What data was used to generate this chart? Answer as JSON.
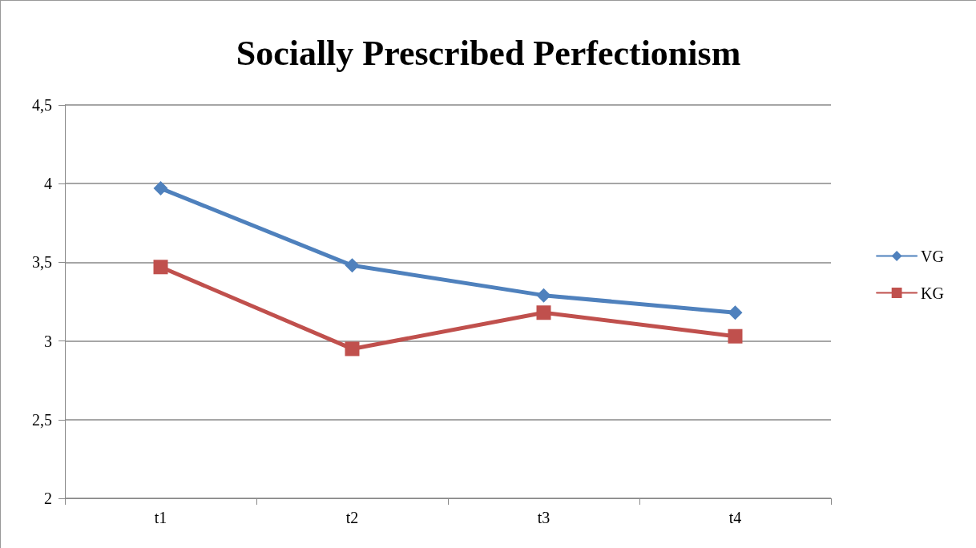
{
  "chart_data": {
    "type": "line",
    "title": "Socially Prescribed Perfectionism",
    "categories": [
      "t1",
      "t2",
      "t3",
      "t4"
    ],
    "series": [
      {
        "name": "VG",
        "color": "#4f81bd",
        "marker": "diamond",
        "values": [
          3.97,
          3.48,
          3.29,
          3.18
        ]
      },
      {
        "name": "KG",
        "color": "#c0504d",
        "marker": "square",
        "values": [
          3.47,
          2.95,
          3.18,
          3.03
        ]
      }
    ],
    "ylim": [
      2,
      4.5
    ],
    "yticks": [
      2,
      {
        "value": 2.5,
        "label": "2,5"
      },
      3,
      {
        "value": 3.5,
        "label": "3,5"
      },
      4,
      {
        "value": 4.5,
        "label": "4,5"
      }
    ],
    "grid": "y",
    "legend": "right",
    "line_style": "solid"
  }
}
